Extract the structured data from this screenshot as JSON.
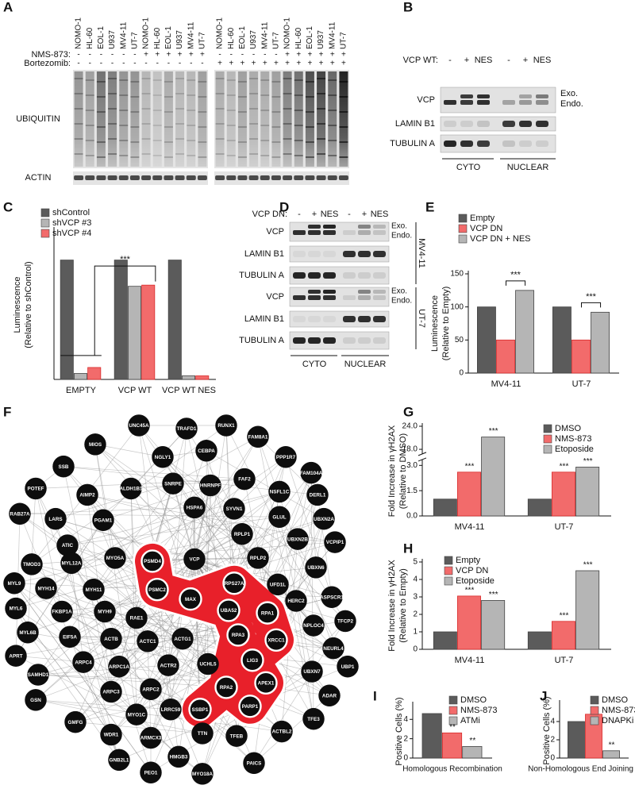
{
  "panel_labels": [
    "A",
    "B",
    "C",
    "D",
    "E",
    "F",
    "G",
    "H",
    "I",
    "J"
  ],
  "panel_a": {
    "lanes": [
      "NOMO-1",
      "HL-60",
      "EOL-1",
      "U937",
      "MV4-11",
      "UT-7",
      "NOMO-1",
      "HL-60",
      "EOL-1",
      "U937",
      "MV4-11",
      "UT-7",
      "NOMO-1",
      "HL-60",
      "EOL-1",
      "U937",
      "MV4-11",
      "UT-7",
      "NOMO-1",
      "HL-60",
      "EOL-1",
      "U937",
      "MV4-11",
      "UT-7"
    ],
    "nms_label": "NMS-873:",
    "nms_873": [
      "-",
      "-",
      "-",
      "-",
      "-",
      "-",
      "+",
      "+",
      "+",
      "+",
      "+",
      "+",
      "-",
      "-",
      "-",
      "-",
      "-",
      "-",
      "+",
      "+",
      "+",
      "+",
      "+",
      "+"
    ],
    "bortezomib_label": "Bortezomib:",
    "bortezomib": [
      "-",
      "-",
      "-",
      "-",
      "-",
      "-",
      "-",
      "-",
      "-",
      "-",
      "-",
      "-",
      "+",
      "+",
      "+",
      "+",
      "+",
      "+",
      "+",
      "+",
      "+",
      "+",
      "+",
      "+"
    ],
    "blots": [
      "UBIQUITIN",
      "ACTIN"
    ]
  },
  "panel_b": {
    "treatment_label": "VCP WT:",
    "conditions": [
      "-",
      "+",
      "NES",
      "-",
      "+",
      "NES"
    ],
    "rows": [
      "VCP",
      "LAMIN B1",
      "TUBULIN A"
    ],
    "vcp_bands": [
      "Exo.",
      "Endo."
    ],
    "fractions": [
      "CYTO",
      "NUCLEAR"
    ]
  },
  "panel_d": {
    "treatment_label": "VCP DN:",
    "conditions": [
      "-",
      "+",
      "NES",
      "-",
      "+",
      "NES"
    ],
    "blocks": [
      {
        "cell_line": "MV4-11",
        "rows": [
          "VCP",
          "LAMIN B1",
          "TUBULIN A"
        ],
        "vcp_bands": [
          "Exo.",
          "Endo."
        ]
      },
      {
        "cell_line": "UT-7",
        "rows": [
          "VCP",
          "LAMIN B1",
          "TUBULIN A"
        ],
        "vcp_bands": [
          "Exo.",
          "Endo."
        ]
      }
    ],
    "fractions": [
      "CYTO",
      "NUCLEAR"
    ]
  },
  "chart_data": [
    {
      "type": "bar",
      "ylabel": [
        "Luminescence",
        "(Relative to shControl)"
      ],
      "categories": [
        "EMPTY",
        "VCP WT",
        "VCP WT NES"
      ],
      "series": [
        {
          "name": "shControl",
          "color": "#5b5b5b",
          "values": [
            100,
            100,
            100
          ]
        },
        {
          "name": "shVCP #3",
          "color": "#b5b5b5",
          "values": [
            5,
            78,
            3
          ]
        },
        {
          "name": "shVCP #4",
          "color": "#f26b6b",
          "values": [
            10,
            79,
            3
          ]
        }
      ],
      "ylim": [
        0,
        125
      ],
      "annotations": [
        "***"
      ],
      "legend": "upper left"
    },
    {
      "type": "bar",
      "ylabel": [
        "Luminescence",
        "(Relative to Empty)"
      ],
      "categories": [
        "MV4-11",
        "UT-7"
      ],
      "series": [
        {
          "name": "Empty",
          "color": "#5b5b5b",
          "values": [
            100,
            100
          ]
        },
        {
          "name": "VCP DN",
          "color": "#f26b6b",
          "values": [
            50,
            50
          ]
        },
        {
          "name": "VCP DN + NES",
          "color": "#b5b5b5",
          "values": [
            125,
            92
          ]
        }
      ],
      "ylim": [
        0,
        150
      ],
      "yticks": [
        0,
        50,
        100,
        150
      ],
      "annotations": [
        "***",
        "***"
      ],
      "legend": "upper left"
    },
    {
      "type": "bar",
      "ylabel": [
        "Fold Increase in γH2AX",
        "(Relative to DMSO)"
      ],
      "categories": [
        "MV4-11",
        "UT-7"
      ],
      "series": [
        {
          "name": "DMSO",
          "color": "#5b5b5b",
          "values": [
            1,
            1
          ]
        },
        {
          "name": "NMS-873",
          "color": "#f26b6b",
          "values": [
            2.6,
            2.6
          ]
        },
        {
          "name": "Etoposide",
          "color": "#b5b5b5",
          "values": [
            21.2,
            2.9
          ]
        }
      ],
      "ylim": [
        0,
        24
      ],
      "ybreak": [
        3.3,
        17
      ],
      "yticks": [
        {
          "value": 0,
          "label": "0.0"
        },
        1.5,
        {
          "value": 3,
          "label": "3.0"
        },
        {
          "value": 18,
          "label": "18.0"
        },
        {
          "value": 24,
          "label": "24.0"
        }
      ],
      "annotations": [
        "***",
        "***",
        "***",
        "***"
      ],
      "legend": "upper right"
    },
    {
      "type": "bar",
      "ylabel": [
        "Fold Increase in γH2AX",
        "(Relative to Empty)"
      ],
      "categories": [
        "MV4-11",
        "UT-7"
      ],
      "series": [
        {
          "name": "Empty",
          "color": "#5b5b5b",
          "values": [
            1,
            1
          ]
        },
        {
          "name": "VCP DN",
          "color": "#f26b6b",
          "values": [
            3.05,
            1.6
          ]
        },
        {
          "name": "Etoposide",
          "color": "#b5b5b5",
          "values": [
            2.8,
            4.5
          ]
        }
      ],
      "ylim": [
        0,
        5
      ],
      "yticks": [
        0,
        1,
        2,
        3,
        4,
        5
      ],
      "annotations": [
        "***",
        "***",
        "***",
        "***"
      ],
      "legend": "upper left"
    },
    {
      "type": "bar",
      "ylabel": [
        "Positive Cells (%)"
      ],
      "categories": [
        "Homologous Recombination"
      ],
      "series": [
        {
          "name": "DMSO",
          "color": "#5b5b5b",
          "values": [
            4.6
          ]
        },
        {
          "name": "NMS-873",
          "color": "#f26b6b",
          "values": [
            2.6
          ]
        },
        {
          "name": "ATMi",
          "color": "#b5b5b5",
          "values": [
            1.2
          ]
        }
      ],
      "ylim": [
        0,
        5.5
      ],
      "yticks": [
        0,
        2,
        4
      ],
      "annotations": [
        "**",
        "**"
      ],
      "legend": "upper right"
    },
    {
      "type": "bar",
      "ylabel": [
        "Positive Cells (%)"
      ],
      "categories": [
        "Non-Homologous End Joining"
      ],
      "series": [
        {
          "name": "DMSO",
          "color": "#5b5b5b",
          "values": [
            4.0
          ]
        },
        {
          "name": "NMS-873",
          "color": "#f26b6b",
          "values": [
            4.8
          ]
        },
        {
          "name": "DNAPKi",
          "color": "#b5b5b5",
          "values": [
            0.8
          ]
        }
      ],
      "ylim": [
        0,
        6
      ],
      "yticks": [
        0,
        2,
        4
      ],
      "annotations": [
        "**"
      ],
      "legend": "upper right"
    }
  ],
  "network": {
    "nodes": [
      {
        "label": "UNC45A"
      },
      {
        "label": "TRAFD1"
      },
      {
        "label": "RUNX1"
      },
      {
        "label": "FAM8A1"
      },
      {
        "label": "MIOS"
      },
      {
        "label": "NGLY1"
      },
      {
        "label": "CEBPA"
      },
      {
        "label": "PPP1R7"
      },
      {
        "label": "SSB"
      },
      {
        "label": "FAM104A"
      },
      {
        "label": "POTEF"
      },
      {
        "label": "AIMP2"
      },
      {
        "label": "ALDH1B1"
      },
      {
        "label": "SNRPE"
      },
      {
        "label": "HNRNPF"
      },
      {
        "label": "FAF2"
      },
      {
        "label": "NSFL1C"
      },
      {
        "label": "DERL1"
      },
      {
        "label": "RAB27A"
      },
      {
        "label": "LARS"
      },
      {
        "label": "PGAM1"
      },
      {
        "label": "HSPA6"
      },
      {
        "label": "SYVN1"
      },
      {
        "label": "GLUL"
      },
      {
        "label": "UBXN2A"
      },
      {
        "label": "ATIC"
      },
      {
        "label": "RPLP1"
      },
      {
        "label": "UBXN2B"
      },
      {
        "label": "VCPIP1"
      },
      {
        "label": "TMOD3"
      },
      {
        "label": "MYL12A"
      },
      {
        "label": "MYO5A"
      },
      {
        "label": "PSMD4",
        "highlighted": true
      },
      {
        "label": "VCP"
      },
      {
        "label": "RPLP2"
      },
      {
        "label": "UBXN6"
      },
      {
        "label": "MYL9"
      },
      {
        "label": "MYH14"
      },
      {
        "label": "MYH11"
      },
      {
        "label": "PSMC2",
        "highlighted": true
      },
      {
        "label": "RPS27A",
        "highlighted": true
      },
      {
        "label": "UFD1L"
      },
      {
        "label": "ASPSCR1"
      },
      {
        "label": "MYL6"
      },
      {
        "label": "FKBP1A"
      },
      {
        "label": "MYH9"
      },
      {
        "label": "RAE1"
      },
      {
        "label": "MAX",
        "highlighted": true
      },
      {
        "label": "UBA52",
        "highlighted": true
      },
      {
        "label": "RPA1",
        "highlighted": true
      },
      {
        "label": "HERC2"
      },
      {
        "label": "NPLOC4"
      },
      {
        "label": "TFCP2"
      },
      {
        "label": "MYL6B"
      },
      {
        "label": "EIF5A"
      },
      {
        "label": "ACTB"
      },
      {
        "label": "RPA3",
        "highlighted": true
      },
      {
        "label": "XRCC1",
        "highlighted": true
      },
      {
        "label": "NEURL4"
      },
      {
        "label": "APRT"
      },
      {
        "label": "ACTC1"
      },
      {
        "label": "ACTG1"
      },
      {
        "label": "LIG3",
        "highlighted": true
      },
      {
        "label": "UBP1"
      },
      {
        "label": "SAMHD1"
      },
      {
        "label": "ARPC4"
      },
      {
        "label": "ARPC1A"
      },
      {
        "label": "ACTR2"
      },
      {
        "label": "UCHL5"
      },
      {
        "label": "APEX1",
        "highlighted": true
      },
      {
        "label": "UBXN7"
      },
      {
        "label": "RPA2",
        "highlighted": true
      },
      {
        "label": "ARPC2"
      },
      {
        "label": "ARPC3"
      },
      {
        "label": "SSBP1",
        "highlighted": true
      },
      {
        "label": "PARP1",
        "highlighted": true
      },
      {
        "label": "ADAR"
      },
      {
        "label": "GSN"
      },
      {
        "label": "MYO1C"
      },
      {
        "label": "LRRC59"
      },
      {
        "label": "TFE3"
      },
      {
        "label": "GMFG"
      },
      {
        "label": "WDR1"
      },
      {
        "label": "ARMCX3"
      },
      {
        "label": "TTN"
      },
      {
        "label": "TFEB"
      },
      {
        "label": "ACTBL2"
      },
      {
        "label": "HMGB3"
      },
      {
        "label": "GNB2L1"
      },
      {
        "label": "PEO1"
      },
      {
        "label": "MYO18A"
      },
      {
        "label": "PAICS"
      }
    ]
  }
}
